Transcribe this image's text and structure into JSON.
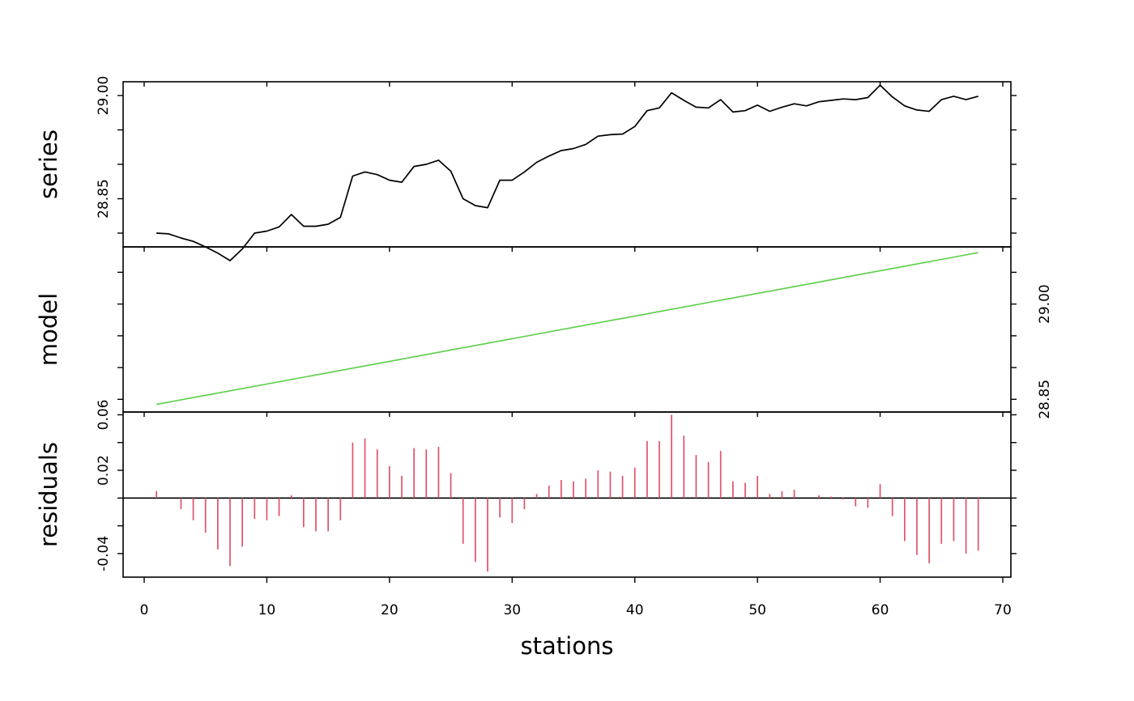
{
  "chart_data": {
    "type": "line",
    "xlabel": "stations",
    "xlim": [
      0,
      70
    ],
    "x_ticks": [
      "0",
      "10",
      "20",
      "30",
      "40",
      "50",
      "60",
      "70"
    ],
    "panels": [
      {
        "name": "series",
        "ylabel": "series",
        "type": "line",
        "color": "#000000",
        "ylim": [
          28.78,
          29.02
        ],
        "y_ticks": [
          28.85,
          29.0
        ],
        "y_tick_labels": [
          "28.85",
          "29.00"
        ],
        "axis_side": "left",
        "x": [
          1,
          2,
          3,
          4,
          5,
          6,
          7,
          8,
          9,
          10,
          11,
          12,
          13,
          14,
          15,
          16,
          17,
          18,
          19,
          20,
          21,
          22,
          23,
          24,
          25,
          26,
          27,
          28,
          29,
          30,
          31,
          32,
          33,
          34,
          35,
          36,
          37,
          38,
          39,
          40,
          41,
          42,
          43,
          44,
          45,
          46,
          47,
          48,
          49,
          50,
          51,
          52,
          53,
          54,
          55,
          56,
          57,
          58,
          59,
          60,
          61,
          62,
          63,
          64,
          65,
          66,
          67,
          68
        ],
        "values": [
          28.8,
          28.799,
          28.793,
          28.788,
          28.78,
          28.771,
          28.76,
          28.777,
          28.8,
          28.803,
          28.809,
          28.827,
          28.81,
          28.81,
          28.813,
          28.823,
          28.883,
          28.889,
          28.885,
          28.877,
          28.874,
          28.897,
          28.9,
          28.906,
          28.89,
          28.85,
          28.84,
          28.837,
          28.877,
          28.877,
          28.889,
          28.903,
          28.912,
          28.92,
          28.923,
          28.929,
          28.941,
          28.943,
          28.944,
          28.955,
          28.978,
          28.982,
          29.004,
          28.993,
          28.983,
          28.982,
          28.994,
          28.976,
          28.978,
          28.986,
          28.977,
          28.983,
          28.988,
          28.985,
          28.991,
          28.993,
          28.995,
          28.994,
          28.997,
          29.015,
          28.998,
          28.985,
          28.979,
          28.977,
          28.994,
          28.999,
          28.994,
          28.999
        ]
      },
      {
        "name": "model",
        "ylabel": "model",
        "type": "line",
        "color": "#61D04F",
        "ylim": [
          28.83,
          29.09
        ],
        "y_ticks": [
          28.85,
          29.0
        ],
        "y_tick_labels": [
          "28.85",
          "29.00"
        ],
        "axis_side": "right",
        "x": [
          1,
          68
        ],
        "values": [
          28.842,
          29.081
        ]
      },
      {
        "name": "residuals",
        "ylabel": "residuals",
        "type": "bar",
        "color": "#DF536B",
        "ylim": [
          -0.057,
          0.062
        ],
        "y_ticks": [
          -0.04,
          0.02,
          0.06
        ],
        "y_tick_labels": [
          "-0.04",
          "0.02",
          "0.06"
        ],
        "axis_side": "left",
        "x": [
          1,
          2,
          3,
          4,
          5,
          6,
          7,
          8,
          9,
          10,
          11,
          12,
          13,
          14,
          15,
          16,
          17,
          18,
          19,
          20,
          21,
          22,
          23,
          24,
          25,
          26,
          27,
          28,
          29,
          30,
          31,
          32,
          33,
          34,
          35,
          36,
          37,
          38,
          39,
          40,
          41,
          42,
          43,
          44,
          45,
          46,
          47,
          48,
          49,
          50,
          51,
          52,
          53,
          54,
          55,
          56,
          57,
          58,
          59,
          60,
          61,
          62,
          63,
          64,
          65,
          66,
          67,
          68
        ],
        "values": [
          0.005,
          0.0,
          -0.008,
          -0.016,
          -0.025,
          -0.037,
          -0.049,
          -0.035,
          -0.015,
          -0.016,
          -0.013,
          0.002,
          -0.021,
          -0.024,
          -0.024,
          -0.016,
          0.04,
          0.043,
          0.035,
          0.023,
          0.016,
          0.036,
          0.035,
          0.037,
          0.018,
          -0.033,
          -0.046,
          -0.053,
          -0.014,
          -0.018,
          -0.008,
          0.003,
          0.009,
          0.013,
          0.012,
          0.014,
          0.02,
          0.019,
          0.016,
          0.022,
          0.041,
          0.041,
          0.06,
          0.045,
          0.031,
          0.026,
          0.034,
          0.012,
          0.011,
          0.016,
          0.003,
          0.005,
          0.006,
          0.0,
          0.002,
          0.001,
          -0.001,
          -0.006,
          -0.007,
          0.01,
          -0.013,
          -0.031,
          -0.041,
          -0.047,
          -0.033,
          -0.031,
          -0.04,
          -0.038
        ]
      }
    ]
  }
}
